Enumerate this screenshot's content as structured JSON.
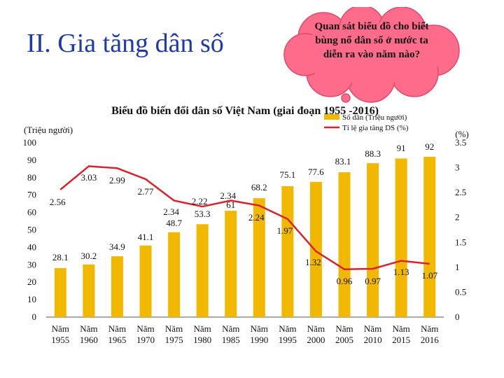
{
  "heading": "II. Gia tăng dân số",
  "callout": "Quan sát biểu đồ cho biết bùng nổ dân số ở nước ta diễn ra vào năm nào?",
  "colors": {
    "heading": "#1f3aa6",
    "bar": "#f2b800",
    "line": "#d9222a",
    "callout_fill": "#ff6b8b"
  },
  "chart_data": {
    "type": "bar",
    "title": "Biểu đồ biến đổi dân số Việt Nam (giai đoạn 1955 -2016)",
    "left_axis_unit": "(Triệu người)",
    "right_axis_unit": "(%)",
    "categories": [
      [
        "Năm",
        "1955"
      ],
      [
        "Năm",
        "1960"
      ],
      [
        "Năm",
        "1965"
      ],
      [
        "Năm",
        "1970"
      ],
      [
        "Năm",
        "1975"
      ],
      [
        "Năm",
        "1980"
      ],
      [
        "Năm",
        "1985"
      ],
      [
        "Năm",
        "1990"
      ],
      [
        "Năm",
        "1995"
      ],
      [
        "Năm",
        "2000"
      ],
      [
        "Năm",
        "2005"
      ],
      [
        "Năm",
        "2010"
      ],
      [
        "Năm",
        "2015"
      ],
      [
        "Năm",
        "2016"
      ]
    ],
    "ylim": [
      0,
      100
    ],
    "y_ticks": [
      "0",
      "10",
      "20",
      "30",
      "40",
      "50",
      "60",
      "70",
      "80",
      "90",
      "100"
    ],
    "y2lim": [
      0,
      3.5
    ],
    "y2_ticks": [
      "0",
      "0.5",
      "1",
      "1.5",
      "2",
      "2.5",
      "3",
      "3.5"
    ],
    "series": [
      {
        "name": "Số dân (Triệu người)",
        "kind": "bar",
        "axis": "left",
        "values": [
          28.1,
          30.2,
          34.9,
          41.1,
          48.7,
          53.3,
          61,
          68.2,
          75.1,
          77.6,
          83.1,
          88.3,
          91,
          92
        ],
        "labels": [
          "28.1",
          "30.2",
          "34.9",
          "41.1",
          "48.7",
          "53.3",
          "61",
          "68.2",
          "75.1",
          "77.6",
          "83.1",
          "88.3",
          "91",
          "92"
        ]
      },
      {
        "name": "Tỉ lệ gia tăng DS (%)",
        "kind": "line",
        "axis": "right",
        "values": [
          2.56,
          3.03,
          2.99,
          2.77,
          2.34,
          2.22,
          2.34,
          2.24,
          1.97,
          1.32,
          0.96,
          0.97,
          1.13,
          1.07
        ],
        "labels": [
          "2.56",
          "3.03",
          "2.99",
          "2.77",
          "2.34",
          "2.22",
          "2.34",
          "2.24",
          "1.97",
          "1.32",
          "0.96",
          "0.97",
          "1.13",
          "1.07"
        ]
      }
    ],
    "legend_position": "top-right",
    "grid": false
  }
}
